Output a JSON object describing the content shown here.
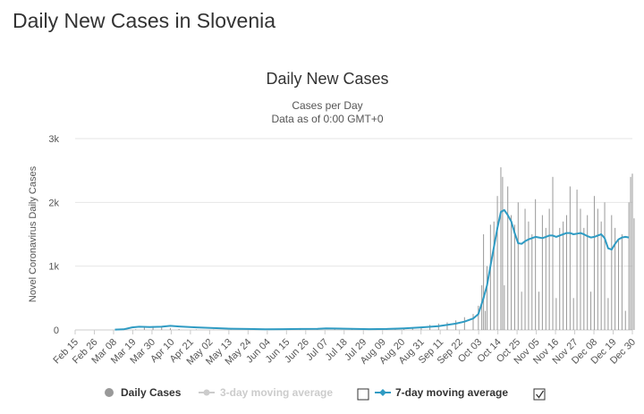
{
  "page": {
    "heading": "Daily New Cases in Slovenia"
  },
  "chart_data": {
    "type": "bar",
    "title": "Daily New Cases",
    "subtitle": "Cases per Day",
    "subtitle2": "Data as of 0:00 GMT+0",
    "ylabel": "Novel Coronavirus Daily Cases",
    "ylim": [
      0,
      3000
    ],
    "yticks": [
      0,
      1000,
      2000,
      3000
    ],
    "ytick_labels": [
      "0",
      "1k",
      "2k",
      "3k"
    ],
    "grid": true,
    "x_labels": [
      "Feb 15",
      "Feb 26",
      "Mar 08",
      "Mar 19",
      "Mar 30",
      "Apr 10",
      "Apr 21",
      "May 02",
      "May 13",
      "May 24",
      "Jun 04",
      "Jun 15",
      "Jun 26",
      "Jul 07",
      "Jul 18",
      "Jul 29",
      "Aug 09",
      "Aug 20",
      "Aug 31",
      "Sep 11",
      "Sep 22",
      "Oct 03",
      "Oct 14",
      "Oct 25",
      "Nov 05",
      "Nov 16",
      "Nov 27",
      "Dec 08",
      "Dec 19",
      "Dec 30"
    ],
    "x_range": [
      "2020-02-15",
      "2021-01-01"
    ],
    "series": [
      {
        "name": "Daily Cases",
        "color": "#999999",
        "values": [
          [
            35,
            10
          ],
          [
            40,
            45
          ],
          [
            45,
            60
          ],
          [
            50,
            40
          ],
          [
            55,
            30
          ],
          [
            60,
            15
          ],
          [
            70,
            8
          ],
          [
            80,
            5
          ],
          [
            90,
            3
          ],
          [
            100,
            2
          ],
          [
            110,
            3
          ],
          [
            120,
            5
          ],
          [
            130,
            10
          ],
          [
            140,
            25
          ],
          [
            150,
            25
          ],
          [
            160,
            20
          ],
          [
            170,
            10
          ],
          [
            180,
            12
          ],
          [
            185,
            20
          ],
          [
            190,
            30
          ],
          [
            195,
            40
          ],
          [
            200,
            50
          ],
          [
            205,
            80
          ],
          [
            210,
            100
          ],
          [
            215,
            120
          ],
          [
            220,
            150
          ],
          [
            225,
            200
          ],
          [
            230,
            250
          ],
          [
            233,
            380
          ],
          [
            235,
            700
          ],
          [
            236,
            1500
          ],
          [
            237,
            300
          ],
          [
            238,
            1000
          ],
          [
            240,
            1650
          ],
          [
            242,
            1700
          ],
          [
            244,
            2100
          ],
          [
            246,
            2550
          ],
          [
            247,
            2400
          ],
          [
            248,
            700
          ],
          [
            250,
            2250
          ],
          [
            252,
            1800
          ],
          [
            254,
            1650
          ],
          [
            256,
            2000
          ],
          [
            258,
            600
          ],
          [
            260,
            1900
          ],
          [
            262,
            1700
          ],
          [
            264,
            1500
          ],
          [
            266,
            2050
          ],
          [
            268,
            600
          ],
          [
            270,
            1800
          ],
          [
            272,
            1600
          ],
          [
            274,
            1900
          ],
          [
            276,
            2400
          ],
          [
            278,
            500
          ],
          [
            280,
            1600
          ],
          [
            282,
            1700
          ],
          [
            284,
            1800
          ],
          [
            286,
            2250
          ],
          [
            288,
            500
          ],
          [
            290,
            2200
          ],
          [
            292,
            1900
          ],
          [
            294,
            1600
          ],
          [
            296,
            1800
          ],
          [
            298,
            600
          ],
          [
            300,
            2100
          ],
          [
            302,
            1900
          ],
          [
            304,
            1700
          ],
          [
            306,
            2000
          ],
          [
            308,
            500
          ],
          [
            310,
            1800
          ],
          [
            312,
            1600
          ],
          [
            314,
            1400
          ],
          [
            316,
            1500
          ],
          [
            318,
            300
          ],
          [
            320,
            2000
          ],
          [
            321,
            2400
          ],
          [
            322,
            2450
          ],
          [
            323,
            1750
          ]
        ]
      },
      {
        "name": "3-day moving average",
        "color": "#cccccc",
        "enabled": false,
        "values": []
      },
      {
        "name": "7-day moving average",
        "color": "#2f9bc3",
        "enabled": true,
        "values": [
          [
            23,
            5
          ],
          [
            28,
            10
          ],
          [
            33,
            40
          ],
          [
            37,
            50
          ],
          [
            43,
            45
          ],
          [
            50,
            50
          ],
          [
            55,
            65
          ],
          [
            60,
            55
          ],
          [
            70,
            40
          ],
          [
            80,
            30
          ],
          [
            90,
            20
          ],
          [
            100,
            15
          ],
          [
            110,
            10
          ],
          [
            120,
            12
          ],
          [
            130,
            15
          ],
          [
            140,
            18
          ],
          [
            145,
            25
          ],
          [
            150,
            22
          ],
          [
            160,
            18
          ],
          [
            170,
            12
          ],
          [
            180,
            15
          ],
          [
            190,
            25
          ],
          [
            200,
            40
          ],
          [
            210,
            60
          ],
          [
            220,
            100
          ],
          [
            225,
            130
          ],
          [
            230,
            180
          ],
          [
            233,
            250
          ],
          [
            236,
            500
          ],
          [
            238,
            700
          ],
          [
            240,
            1000
          ],
          [
            242,
            1300
          ],
          [
            244,
            1600
          ],
          [
            246,
            1850
          ],
          [
            248,
            1880
          ],
          [
            250,
            1800
          ],
          [
            252,
            1700
          ],
          [
            254,
            1520
          ],
          [
            256,
            1360
          ],
          [
            258,
            1350
          ],
          [
            260,
            1390
          ],
          [
            262,
            1420
          ],
          [
            264,
            1440
          ],
          [
            266,
            1460
          ],
          [
            268,
            1450
          ],
          [
            270,
            1440
          ],
          [
            272,
            1460
          ],
          [
            274,
            1480
          ],
          [
            276,
            1480
          ],
          [
            278,
            1460
          ],
          [
            280,
            1480
          ],
          [
            282,
            1500
          ],
          [
            284,
            1520
          ],
          [
            286,
            1520
          ],
          [
            288,
            1500
          ],
          [
            290,
            1510
          ],
          [
            292,
            1520
          ],
          [
            294,
            1500
          ],
          [
            296,
            1470
          ],
          [
            298,
            1450
          ],
          [
            300,
            1460
          ],
          [
            302,
            1480
          ],
          [
            304,
            1500
          ],
          [
            306,
            1440
          ],
          [
            308,
            1280
          ],
          [
            310,
            1260
          ],
          [
            312,
            1350
          ],
          [
            314,
            1420
          ],
          [
            316,
            1450
          ],
          [
            318,
            1460
          ],
          [
            320,
            1450
          ]
        ]
      }
    ],
    "legend": {
      "placement": "bottom",
      "items": [
        {
          "label": "Daily Cases",
          "symbol": "circle",
          "color": "#999999",
          "text_color": "#333333"
        },
        {
          "label": "3-day moving average",
          "symbol": "line-dot",
          "color": "#cccccc",
          "text_color": "#cccccc",
          "checked": false
        },
        {
          "label": "7-day moving average",
          "symbol": "line-diamond",
          "color": "#2f9bc3",
          "text_color": "#333333",
          "checked": true
        }
      ]
    }
  }
}
